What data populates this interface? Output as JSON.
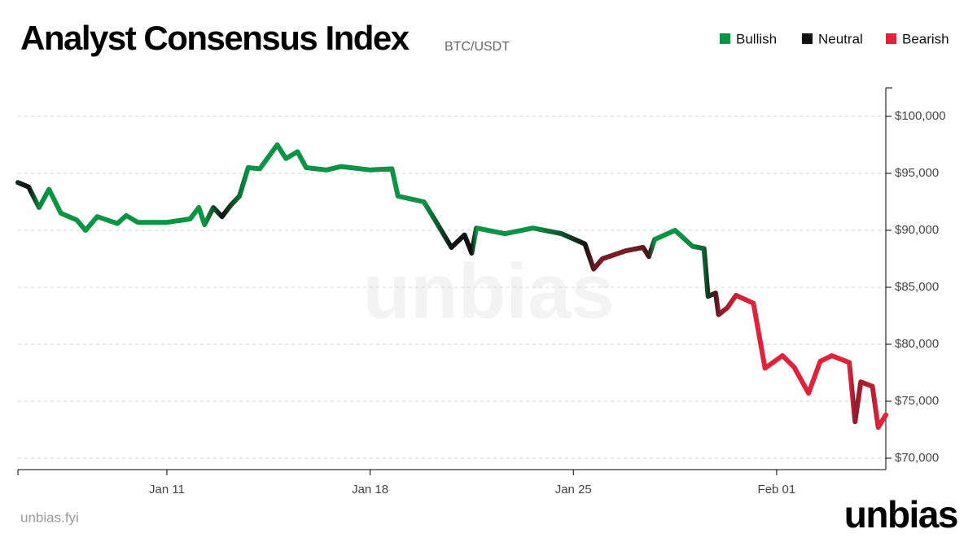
{
  "chart_data": {
    "type": "line",
    "title": "Analyst Consensus Index",
    "subtitle": "BTC/USDT",
    "watermark": "unbias",
    "footer": "unbias.fyi",
    "brand": "unbias",
    "legend": [
      {
        "name": "Bullish",
        "color": "#0b9444"
      },
      {
        "name": "Neutral",
        "color": "#111111"
      },
      {
        "name": "Bearish",
        "color": "#e0233a"
      }
    ],
    "x": [
      5.87,
      6.24,
      6.6,
      6.94,
      7.35,
      7.9,
      8.2,
      8.6,
      9.3,
      9.6,
      10.0,
      11.0,
      11.8,
      12.1,
      12.3,
      12.6,
      12.9,
      13.2,
      13.5,
      13.8,
      14.2,
      14.8,
      15.1,
      15.5,
      15.8,
      16.5,
      17.0,
      18.0,
      18.75,
      18.96,
      19.85,
      20.26,
      20.8,
      21.25,
      21.5,
      21.66,
      22.65,
      23.6,
      24.6,
      25.4,
      25.7,
      26.0,
      26.8,
      27.4,
      27.6,
      27.8,
      28.5,
      29.1,
      29.5,
      29.64,
      29.9,
      30.0,
      30.3,
      30.6,
      31.2,
      31.6,
      32.2,
      32.6,
      33.1,
      33.5,
      33.9,
      34.5,
      34.7,
      34.9,
      35.3,
      35.5,
      35.76
    ],
    "series": [
      {
        "values": [
          94200,
          93800,
          92000,
          93600,
          91500,
          90900,
          90000,
          91200,
          90600,
          91300,
          90700,
          90700,
          91000,
          92000,
          90500,
          92000,
          91200,
          92200,
          93000,
          95500,
          95400,
          97500,
          96300,
          96900,
          95500,
          95300,
          95600,
          95300,
          95400,
          93000,
          92500,
          90800,
          88500,
          89600,
          88000,
          90200,
          89700,
          90200,
          89700,
          88800,
          86600,
          87500,
          88200,
          88500,
          87700,
          89200,
          90000,
          88600,
          88400,
          84200,
          84500,
          82600,
          83200,
          84300,
          83600,
          77900,
          79000,
          78000,
          75700,
          78500,
          79000,
          78400,
          73200,
          76700,
          76300,
          72700,
          73800
        ],
        "sentiment": [
          0.2,
          0,
          0.9,
          1,
          1,
          1,
          1,
          1,
          1,
          1,
          1,
          1,
          1,
          1,
          1,
          0.5,
          0,
          0.4,
          0.7,
          1,
          1,
          1,
          1,
          1,
          1,
          1,
          1,
          1,
          1,
          1,
          1,
          0.6,
          0,
          0,
          0,
          1,
          1,
          1,
          0.5,
          0,
          -0.4,
          -0.5,
          -0.5,
          -0.4,
          -0.2,
          1,
          1,
          0.9,
          0.6,
          0.3,
          -0.3,
          -0.5,
          -0.7,
          -0.9,
          -1,
          -1,
          -1,
          -1,
          -1,
          -1,
          -1,
          -1,
          -0.6,
          -0.7,
          -0.8,
          -1,
          -1
        ]
      }
    ],
    "xlim": [
      5.87,
      35.76
    ],
    "xticks": [
      {
        "value": 11,
        "label": "Jan 11"
      },
      {
        "value": 18,
        "label": "Jan 18"
      },
      {
        "value": 25,
        "label": "Jan 25"
      },
      {
        "value": 32,
        "label": "Feb 01"
      }
    ],
    "ylim": [
      69000,
      102500
    ],
    "yticks": [
      {
        "value": 70000,
        "label": "$70,000"
      },
      {
        "value": 75000,
        "label": "$75,000"
      },
      {
        "value": 80000,
        "label": "$80,000"
      },
      {
        "value": 85000,
        "label": "$85,000"
      },
      {
        "value": 90000,
        "label": "$90,000"
      },
      {
        "value": 95000,
        "label": "$95,000"
      },
      {
        "value": 100000,
        "label": "$100,000"
      }
    ],
    "grid": true
  }
}
